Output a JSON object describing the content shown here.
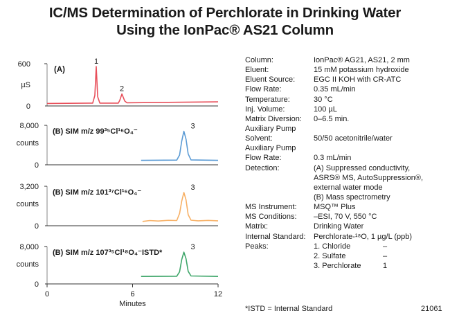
{
  "title": {
    "line1": "IC/MS Determination of Perchlorate in Drinking Water",
    "line2": "Using the IonPac® AS21 Column"
  },
  "chart_data": [
    {
      "type": "line",
      "panel": "A",
      "label": "(A)",
      "ylabel": "µS",
      "ylim": [
        0,
        600
      ],
      "yticks": [
        "600",
        "0"
      ],
      "xlim": [
        0,
        12
      ],
      "color": "#e8505b",
      "x": [
        0,
        3.2,
        3.35,
        3.45,
        3.55,
        3.7,
        5.0,
        5.1,
        5.25,
        5.45,
        5.6,
        12
      ],
      "values": [
        35,
        40,
        150,
        560,
        130,
        40,
        40,
        80,
        170,
        70,
        45,
        58
      ],
      "peaks": [
        {
          "label": "1",
          "x": 3.45,
          "y": 560
        },
        {
          "label": "2",
          "x": 5.25,
          "y": 170
        }
      ]
    },
    {
      "type": "line",
      "panel": "B1",
      "label_prefix": "(B) SIM m/z 99 ",
      "label_formula": "³⁵Cl¹⁶O₄⁻",
      "yticks": [
        "8,000",
        "counts",
        "0"
      ],
      "ylim": [
        0,
        8000
      ],
      "xlim": [
        0,
        12
      ],
      "color": "#5b9bd5",
      "x": [
        6.6,
        9.1,
        9.3,
        9.45,
        9.6,
        9.75,
        9.9,
        10.1,
        12
      ],
      "values": [
        900,
        950,
        2000,
        4800,
        6800,
        5200,
        2200,
        1000,
        900
      ],
      "peaks": [
        {
          "label": "3",
          "x": 9.6,
          "y": 6800
        }
      ]
    },
    {
      "type": "line",
      "panel": "B2",
      "label_prefix": "(B) SIM m/z 101 ",
      "label_formula": "³⁷Cl¹⁶O₄⁻",
      "yticks": [
        "3,200",
        "counts",
        "0"
      ],
      "ylim": [
        0,
        3200
      ],
      "xlim": [
        0,
        12
      ],
      "color": "#f7b065",
      "x": [
        6.7,
        7.2,
        7.8,
        8.5,
        9.1,
        9.3,
        9.45,
        9.6,
        9.75,
        9.9,
        10.1,
        10.6,
        11.3,
        12
      ],
      "values": [
        350,
        420,
        380,
        440,
        420,
        1000,
        2000,
        2700,
        2100,
        900,
        450,
        400,
        430,
        400
      ],
      "peaks": [
        {
          "label": "3",
          "x": 9.6,
          "y": 2700
        }
      ]
    },
    {
      "type": "line",
      "panel": "B3",
      "label_prefix": "(B) SIM m/z 107 ",
      "label_formula": "³⁵Cl¹⁸O₄⁻",
      "label_suffix": "ISTD*",
      "yticks": [
        "8,000",
        "counts",
        "0"
      ],
      "ylim": [
        0,
        8000
      ],
      "xlim": [
        0,
        12
      ],
      "color": "#3fa66a",
      "x": [
        6.6,
        9.1,
        9.3,
        9.45,
        9.6,
        9.75,
        9.9,
        10.1,
        12
      ],
      "values": [
        1600,
        1650,
        2600,
        5200,
        6800,
        5400,
        2700,
        1700,
        1600
      ],
      "peaks": [
        {
          "label": "3",
          "x": 9.6,
          "y": 6800
        }
      ]
    }
  ],
  "xaxis": {
    "ticks": [
      "0",
      "6",
      "12"
    ],
    "tick_values": [
      0,
      6,
      12
    ],
    "label": "Minutes"
  },
  "conditions": [
    {
      "label": "Column:",
      "value": "IonPac® AG21, AS21, 2 mm"
    },
    {
      "label": "Eluent:",
      "value": "15 mM potassium hydroxide"
    },
    {
      "label": "Eluent Source:",
      "value": "EGC II KOH with CR-ATC"
    },
    {
      "label": "Flow Rate:",
      "value": "0.35 mL/min"
    },
    {
      "label": "Temperature:",
      "value": "30 °C"
    },
    {
      "label": "Inj. Volume:",
      "value": "100 µL"
    },
    {
      "label": "Matrix Diversion:",
      "value": "0–6.5 min."
    },
    {
      "label": "Auxiliary Pump",
      "value": ""
    },
    {
      "label": "Solvent:",
      "value": "50/50 acetonitrile/water"
    },
    {
      "label": "Auxiliary Pump",
      "value": ""
    },
    {
      "label": "Flow Rate:",
      "value": "0.3 mL/min"
    },
    {
      "label": "Detection:",
      "value": "(A) Suppressed conductivity,"
    },
    {
      "label": "",
      "value": "ASRS® MS, AutoSuppression®,"
    },
    {
      "label": "",
      "value": "external water mode"
    },
    {
      "label": "",
      "value": "(B) Mass spectrometry"
    },
    {
      "label": "MS Instrument:",
      "value": "MSQ™ Plus"
    },
    {
      "label": "MS Conditions:",
      "value": "–ESI, 70 V, 550 °C"
    },
    {
      "label": "Matrix:",
      "value": "Drinking Water"
    },
    {
      "label": "Internal Standard:",
      "value": "Perchlorate-¹⁸O, 1 µg/L (ppb)"
    },
    {
      "label": "Peaks:",
      "value": "1. Chloride",
      "amount": "–"
    },
    {
      "label": "",
      "value": "2. Sulfate",
      "amount": "–"
    },
    {
      "label": "",
      "value": "3. Perchlorate",
      "amount": "1"
    }
  ],
  "footnote": "*ISTD = Internal Standard",
  "figure_id": "21061"
}
